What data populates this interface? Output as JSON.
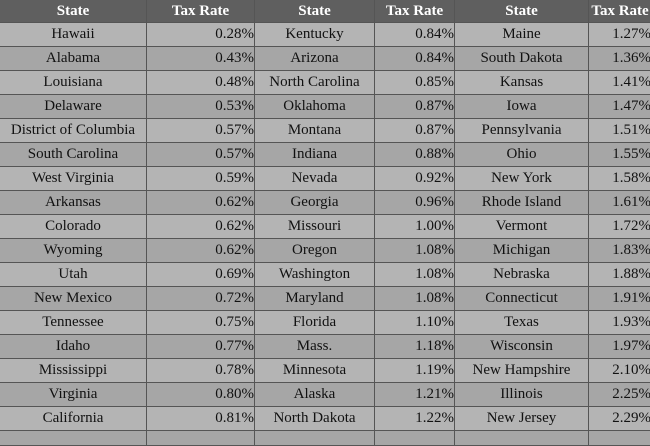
{
  "headers": [
    "State",
    "Tax Rate",
    "State",
    "Tax Rate",
    "State",
    "Tax Rate"
  ],
  "rows": [
    [
      "Hawaii",
      "0.28%",
      "Kentucky",
      "0.84%",
      "Maine",
      "1.27%"
    ],
    [
      "Alabama",
      "0.43%",
      "Arizona",
      "0.84%",
      "South Dakota",
      "1.36%"
    ],
    [
      "Louisiana",
      "0.48%",
      "North Carolina",
      "0.85%",
      "Kansas",
      "1.41%"
    ],
    [
      "Delaware",
      "0.53%",
      "Oklahoma",
      "0.87%",
      "Iowa",
      "1.47%"
    ],
    [
      "District of Columbia",
      "0.57%",
      "Montana",
      "0.87%",
      "Pennsylvania",
      "1.51%"
    ],
    [
      "South Carolina",
      "0.57%",
      "Indiana",
      "0.88%",
      "Ohio",
      "1.55%"
    ],
    [
      "West Virginia",
      "0.59%",
      "Nevada",
      "0.92%",
      "New York",
      "1.58%"
    ],
    [
      "Arkansas",
      "0.62%",
      "Georgia",
      "0.96%",
      "Rhode Island",
      "1.61%"
    ],
    [
      "Colorado",
      "0.62%",
      "Missouri",
      "1.00%",
      "Vermont",
      "1.72%"
    ],
    [
      "Wyoming",
      "0.62%",
      "Oregon",
      "1.08%",
      "Michigan",
      "1.83%"
    ],
    [
      "Utah",
      "0.69%",
      "Washington",
      "1.08%",
      "Nebraska",
      "1.88%"
    ],
    [
      "New Mexico",
      "0.72%",
      "Maryland",
      "1.08%",
      "Connecticut",
      "1.91%"
    ],
    [
      "Tennessee",
      "0.75%",
      "Florida",
      "1.10%",
      "Texas",
      "1.93%"
    ],
    [
      "Idaho",
      "0.77%",
      "Mass.",
      "1.18%",
      "Wisconsin",
      "1.97%"
    ],
    [
      "Mississippi",
      "0.78%",
      "Minnesota",
      "1.19%",
      "New Hampshire",
      "2.10%"
    ],
    [
      "Virginia",
      "0.80%",
      "Alaska",
      "1.21%",
      "Illinois",
      "2.25%"
    ],
    [
      "California",
      "0.81%",
      "North Dakota",
      "1.22%",
      "New Jersey",
      "2.29%"
    ]
  ]
}
